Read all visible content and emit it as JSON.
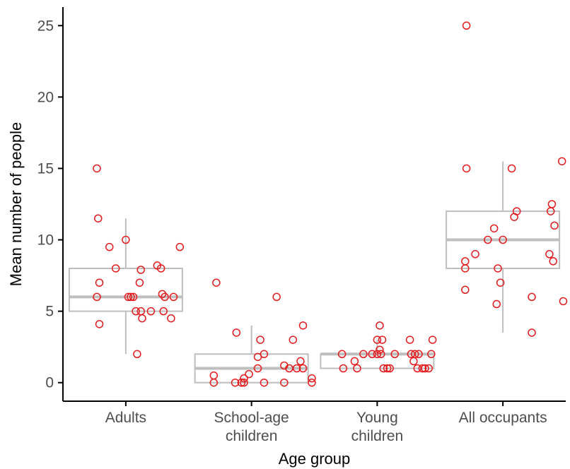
{
  "chart_data": {
    "type": "boxplot-with-jitter",
    "xlabel": "Age group",
    "ylabel": "Mean number of people",
    "ylim": [
      -1.3,
      26.3
    ],
    "y_ticks": [
      0,
      5,
      10,
      15,
      20,
      25
    ],
    "grid": false,
    "colors": {
      "box": "#bebebe",
      "points": "#e41a1c",
      "axis": "#000000",
      "text": "#4d4d4d"
    },
    "categories": [
      {
        "label": [
          "Adults"
        ]
      },
      {
        "label": [
          "School-age",
          "children"
        ]
      },
      {
        "label": [
          "Young",
          "children"
        ]
      },
      {
        "label": [
          "All occupants"
        ]
      }
    ],
    "boxes": [
      {
        "q1": 5,
        "median": 6,
        "q3": 8,
        "whisker_low": 2,
        "whisker_high": 11.5
      },
      {
        "q1": 0,
        "median": 1,
        "q3": 2,
        "whisker_low": 0,
        "whisker_high": 4
      },
      {
        "q1": 1,
        "median": 2,
        "q3": 2,
        "whisker_low": 1,
        "whisker_high": 3
      },
      {
        "q1": 8,
        "median": 10,
        "q3": 12,
        "whisker_low": 3.5,
        "whisker_high": 15.5
      }
    ],
    "points": [
      [
        [
          -0.23,
          15
        ],
        [
          -0.22,
          11.5
        ],
        [
          -0.21,
          4.1
        ],
        [
          -0.21,
          7.0
        ],
        [
          -0.23,
          6.0
        ],
        [
          -0.13,
          9.5
        ],
        [
          -0.08,
          8.0
        ],
        [
          0.0,
          10.0
        ],
        [
          0.02,
          6.0
        ],
        [
          0.04,
          6.0
        ],
        [
          0.06,
          6.0
        ],
        [
          0.08,
          5.0
        ],
        [
          0.12,
          7.9
        ],
        [
          0.11,
          7.0
        ],
        [
          0.12,
          5.0
        ],
        [
          0.13,
          4.5
        ],
        [
          0.09,
          2.0
        ],
        [
          0.2,
          5.0
        ],
        [
          0.25,
          8.2
        ],
        [
          0.28,
          8.0
        ],
        [
          0.29,
          6.2
        ],
        [
          0.31,
          6.0
        ],
        [
          0.3,
          5.0
        ],
        [
          0.38,
          6.0
        ],
        [
          0.36,
          4.5
        ],
        [
          0.43,
          9.5
        ]
      ],
      [
        [
          -0.28,
          7.0
        ],
        [
          -0.3,
          0.5
        ],
        [
          -0.3,
          0.0
        ],
        [
          -0.12,
          3.5
        ],
        [
          -0.13,
          0.0
        ],
        [
          -0.08,
          0.0
        ],
        [
          -0.06,
          0.3
        ],
        [
          -0.06,
          0.0
        ],
        [
          -0.02,
          0.6
        ],
        [
          0.05,
          1.0
        ],
        [
          0.05,
          1.8
        ],
        [
          0.07,
          3.0
        ],
        [
          0.1,
          2.0
        ],
        [
          0.1,
          0.0
        ],
        [
          0.2,
          6.0
        ],
        [
          0.26,
          1.2
        ],
        [
          0.26,
          0.0
        ],
        [
          0.3,
          1.0
        ],
        [
          0.33,
          3.0
        ],
        [
          0.36,
          1.0
        ],
        [
          0.39,
          1.5
        ],
        [
          0.41,
          1.0
        ],
        [
          0.41,
          4.0
        ],
        [
          0.48,
          0.3
        ],
        [
          0.48,
          0.0
        ]
      ],
      [
        [
          -0.28,
          2.0
        ],
        [
          -0.27,
          1.0
        ],
        [
          -0.18,
          1.5
        ],
        [
          -0.16,
          1.0
        ],
        [
          -0.11,
          2.0
        ],
        [
          -0.04,
          2.0
        ],
        [
          0.0,
          2.0
        ],
        [
          0.0,
          3.0
        ],
        [
          0.02,
          4.0
        ],
        [
          0.02,
          2.3
        ],
        [
          0.03,
          2.0
        ],
        [
          0.04,
          3.0
        ],
        [
          0.05,
          1.0
        ],
        [
          0.08,
          1.0
        ],
        [
          0.1,
          1.0
        ],
        [
          0.14,
          2.0
        ],
        [
          0.26,
          3.0
        ],
        [
          0.27,
          2.0
        ],
        [
          0.29,
          1.5
        ],
        [
          0.3,
          2.0
        ],
        [
          0.32,
          1.0
        ],
        [
          0.33,
          2.0
        ],
        [
          0.36,
          1.0
        ],
        [
          0.38,
          1.0
        ],
        [
          0.41,
          1.0
        ],
        [
          0.43,
          2.0
        ],
        [
          0.44,
          3.0
        ]
      ],
      [
        [
          -0.29,
          25.0
        ],
        [
          -0.29,
          15.0
        ],
        [
          -0.3,
          8.5
        ],
        [
          -0.3,
          8.0
        ],
        [
          -0.3,
          6.5
        ],
        [
          -0.22,
          9.0
        ],
        [
          -0.12,
          10.0
        ],
        [
          -0.07,
          10.8
        ],
        [
          -0.05,
          5.5
        ],
        [
          -0.04,
          8.0
        ],
        [
          -0.02,
          7.0
        ],
        [
          0.0,
          10.0
        ],
        [
          0.07,
          15.0
        ],
        [
          0.09,
          11.6
        ],
        [
          0.11,
          12.0
        ],
        [
          0.23,
          3.5
        ],
        [
          0.23,
          6.0
        ],
        [
          0.37,
          9.0
        ],
        [
          0.38,
          12.0
        ],
        [
          0.39,
          12.5
        ],
        [
          0.4,
          8.5
        ],
        [
          0.41,
          11.0
        ],
        [
          0.47,
          15.5
        ],
        [
          0.48,
          5.7
        ]
      ]
    ]
  }
}
